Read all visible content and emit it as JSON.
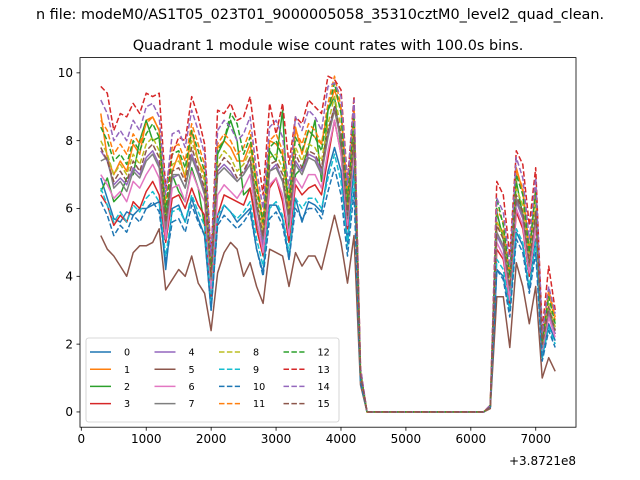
{
  "suptitle": "n file: modeM0/AS1T05_023T01_9000005058_35310cztM0_level2_quad_clean.",
  "chart_data": {
    "type": "line",
    "title": "Quadrant 1 module wise count rates with 100.0s bins.",
    "xlabel": "",
    "ylabel": "",
    "x_offset_label": "+3.8721e8",
    "xlim": [
      -20,
      7620
    ],
    "ylim": [
      -0.45,
      10.45
    ],
    "xticks": [
      0,
      1000,
      2000,
      3000,
      4000,
      5000,
      6000,
      7000
    ],
    "yticks": [
      0,
      2,
      4,
      6,
      8,
      10
    ],
    "grid": false,
    "legend": {
      "placement": "lower-left",
      "columns": 4
    },
    "x": [
      300,
      400,
      500,
      600,
      700,
      800,
      900,
      1000,
      1100,
      1200,
      1300,
      1400,
      1500,
      1600,
      1700,
      1800,
      1900,
      2000,
      2100,
      2200,
      2300,
      2400,
      2500,
      2600,
      2700,
      2800,
      2900,
      3000,
      3100,
      3200,
      3300,
      3400,
      3500,
      3600,
      3700,
      3800,
      3900,
      4000,
      4100,
      4200,
      4300,
      4400,
      4500,
      4600,
      4700,
      4800,
      4900,
      5000,
      5100,
      5200,
      5300,
      5400,
      5500,
      5600,
      5700,
      5800,
      5900,
      6000,
      6100,
      6200,
      6300,
      6400,
      6500,
      6600,
      6700,
      6800,
      6900,
      7000,
      7100,
      7200,
      7300
    ],
    "series": [
      {
        "name": "0",
        "color": "#1f77b4",
        "dash": "solid",
        "values": [
          6.9,
          6.3,
          5.7,
          5.6,
          5.9,
          5.8,
          6.0,
          6.0,
          6.1,
          6.2,
          4.2,
          6.0,
          6.1,
          5.6,
          6.3,
          5.7,
          5.2,
          3.0,
          5.6,
          6.1,
          5.9,
          5.6,
          5.8,
          6.0,
          4.8,
          4.1,
          6.1,
          6.1,
          5.7,
          4.5,
          6.3,
          5.6,
          6.2,
          6.1,
          5.9,
          7.1,
          7.8,
          7.1,
          5.0,
          7.2,
          1.0,
          0.0,
          0,
          0,
          0,
          0,
          0,
          0,
          0,
          0,
          0,
          0,
          0,
          0,
          0,
          0,
          0,
          0,
          0,
          0,
          0.15,
          4.2,
          4.0,
          3.0,
          5.3,
          4.9,
          3.6,
          5.1,
          1.6,
          2.6,
          2.1
        ]
      },
      {
        "name": "1",
        "color": "#ff7f0e",
        "dash": "solid",
        "values": [
          8.8,
          7.5,
          7.0,
          7.4,
          7.1,
          7.9,
          7.6,
          8.6,
          8.7,
          8.3,
          5.5,
          7.1,
          7.6,
          6.9,
          8.3,
          7.4,
          7.0,
          4.4,
          7.8,
          8.0,
          7.8,
          7.4,
          7.4,
          7.9,
          6.8,
          5.5,
          8.0,
          7.9,
          7.6,
          6.1,
          8.4,
          7.6,
          8.3,
          8.1,
          7.9,
          8.9,
          9.5,
          8.9,
          6.1,
          8.9,
          1.1,
          0.0,
          0,
          0,
          0,
          0,
          0,
          0,
          0,
          0,
          0,
          0,
          0,
          0,
          0,
          0,
          0,
          0,
          0,
          0,
          0.2,
          5.6,
          5.3,
          4.0,
          7.2,
          6.5,
          4.7,
          6.6,
          2.1,
          3.6,
          2.8
        ]
      },
      {
        "name": "2",
        "color": "#2ca02c",
        "dash": "solid",
        "values": [
          6.5,
          6.9,
          6.2,
          6.4,
          6.9,
          7.0,
          8.0,
          8.6,
          8.0,
          8.1,
          5.8,
          7.0,
          6.5,
          6.2,
          7.2,
          6.6,
          5.5,
          3.3,
          7.6,
          8.0,
          8.6,
          8.0,
          6.4,
          6.6,
          5.6,
          4.8,
          7.7,
          7.4,
          8.9,
          5.4,
          7.0,
          7.2,
          7.8,
          8.6,
          6.8,
          8.9,
          9.3,
          7.8,
          5.8,
          8.3,
          1.0,
          0.0,
          0,
          0,
          0,
          0,
          0,
          0,
          0,
          0,
          0,
          0,
          0,
          0,
          0,
          0,
          0,
          0,
          0,
          0,
          0.15,
          5.9,
          5.1,
          3.4,
          6.8,
          5.8,
          4.2,
          5.8,
          1.9,
          3.0,
          2.4
        ]
      },
      {
        "name": "3",
        "color": "#d62728",
        "dash": "solid",
        "values": [
          6.4,
          6.1,
          5.5,
          5.8,
          5.6,
          6.2,
          6.0,
          6.5,
          6.8,
          6.4,
          5.0,
          6.3,
          6.4,
          6.0,
          6.6,
          6.1,
          5.8,
          3.3,
          5.8,
          6.4,
          6.3,
          6.2,
          6.1,
          6.6,
          5.4,
          4.6,
          6.6,
          6.9,
          6.2,
          5.0,
          6.7,
          6.4,
          6.6,
          6.7,
          6.4,
          7.5,
          8.6,
          7.6,
          5.4,
          7.9,
          1.0,
          0.0,
          0,
          0,
          0,
          0,
          0,
          0,
          0,
          0,
          0,
          0,
          0,
          0,
          0,
          0,
          0,
          0,
          0,
          0,
          0.15,
          4.8,
          4.5,
          3.2,
          5.9,
          5.4,
          4.0,
          5.5,
          1.8,
          2.8,
          2.3
        ]
      },
      {
        "name": "4",
        "color": "#9467bd",
        "dash": "solid",
        "values": [
          7.7,
          7.4,
          6.7,
          6.9,
          6.7,
          7.2,
          7.0,
          7.5,
          7.7,
          7.3,
          5.3,
          6.9,
          7.0,
          6.6,
          7.6,
          7.1,
          6.5,
          4.0,
          7.1,
          7.3,
          7.1,
          6.8,
          7.0,
          7.5,
          6.1,
          4.9,
          7.1,
          7.3,
          6.8,
          5.7,
          7.4,
          7.1,
          7.6,
          7.5,
          7.1,
          8.2,
          9.0,
          8.1,
          5.7,
          8.1,
          1.0,
          0.0,
          0,
          0,
          0,
          0,
          0,
          0,
          0,
          0,
          0,
          0,
          0,
          0,
          0,
          0,
          0,
          0,
          0,
          0,
          0.15,
          5.2,
          4.8,
          3.5,
          6.2,
          5.7,
          4.2,
          5.7,
          1.9,
          2.9,
          2.3
        ]
      },
      {
        "name": "5",
        "color": "#8c564b",
        "dash": "solid",
        "values": [
          5.2,
          4.8,
          4.6,
          4.3,
          4.0,
          4.7,
          4.9,
          4.9,
          5.0,
          5.4,
          3.6,
          3.9,
          4.2,
          4.0,
          4.6,
          3.8,
          3.5,
          2.4,
          4.1,
          4.7,
          5.0,
          4.8,
          4.0,
          4.4,
          3.7,
          3.2,
          4.8,
          4.7,
          4.6,
          3.7,
          4.7,
          4.3,
          4.6,
          4.6,
          4.2,
          5.0,
          5.8,
          5.0,
          3.8,
          5.2,
          0.8,
          0.0,
          0,
          0,
          0,
          0,
          0,
          0,
          0,
          0,
          0,
          0,
          0,
          0,
          0,
          0,
          0,
          0,
          0,
          0,
          0.1,
          3.4,
          3.4,
          1.9,
          4.4,
          3.7,
          2.6,
          3.7,
          1.0,
          1.6,
          1.2
        ]
      },
      {
        "name": "6",
        "color": "#e377c2",
        "dash": "solid",
        "values": [
          7.0,
          6.7,
          6.3,
          6.5,
          6.2,
          6.8,
          6.6,
          7.0,
          7.3,
          6.9,
          5.1,
          6.6,
          6.7,
          6.2,
          7.1,
          6.6,
          6.2,
          3.6,
          6.4,
          6.7,
          6.5,
          6.3,
          6.6,
          7.0,
          5.7,
          4.7,
          6.7,
          6.9,
          6.4,
          5.2,
          6.9,
          6.6,
          7.0,
          7.0,
          6.6,
          7.7,
          8.6,
          7.6,
          5.5,
          7.7,
          1.0,
          0.0,
          0,
          0,
          0,
          0,
          0,
          0,
          0,
          0,
          0,
          0,
          0,
          0,
          0,
          0,
          0,
          0,
          0,
          0,
          0.15,
          5.0,
          4.6,
          3.3,
          6.0,
          5.5,
          4.1,
          5.5,
          1.8,
          2.8,
          2.2
        ]
      },
      {
        "name": "7",
        "color": "#7f7f7f",
        "dash": "solid",
        "values": [
          7.4,
          7.5,
          6.6,
          6.8,
          6.5,
          7.1,
          6.9,
          7.4,
          7.6,
          7.2,
          5.4,
          7.0,
          7.0,
          6.6,
          7.5,
          7.0,
          6.4,
          3.9,
          7.0,
          7.2,
          7.0,
          6.8,
          7.0,
          7.3,
          6.0,
          5.1,
          7.1,
          7.2,
          6.8,
          5.6,
          7.3,
          7.0,
          7.5,
          7.4,
          7.0,
          8.1,
          8.9,
          8.0,
          5.7,
          8.0,
          1.0,
          0.0,
          0,
          0,
          0,
          0,
          0,
          0,
          0,
          0,
          0,
          0,
          0,
          0,
          0,
          0,
          0,
          0,
          0,
          0,
          0.15,
          5.3,
          4.9,
          3.6,
          6.3,
          5.8,
          4.3,
          5.8,
          1.9,
          3.0,
          2.4
        ]
      },
      {
        "name": "8",
        "color": "#bcbd22",
        "dash": "dashed",
        "values": [
          8.0,
          7.6,
          7.0,
          7.3,
          7.0,
          7.6,
          7.3,
          7.9,
          8.1,
          7.7,
          5.7,
          7.3,
          7.4,
          7.0,
          8.0,
          7.4,
          6.8,
          4.1,
          7.4,
          7.7,
          7.5,
          7.1,
          7.3,
          7.7,
          6.4,
          5.3,
          7.5,
          7.6,
          7.2,
          5.9,
          7.8,
          7.4,
          7.9,
          7.8,
          7.4,
          8.5,
          9.3,
          8.4,
          6.0,
          8.4,
          1.1,
          0.0,
          0,
          0,
          0,
          0,
          0,
          0,
          0,
          0,
          0,
          0,
          0,
          0,
          0,
          0,
          0,
          0,
          0,
          0,
          0.15,
          5.6,
          5.2,
          3.8,
          6.6,
          6.1,
          4.5,
          6.1,
          2.0,
          3.2,
          2.5
        ]
      },
      {
        "name": "9",
        "color": "#17becf",
        "dash": "dashed",
        "values": [
          6.6,
          6.1,
          5.6,
          5.9,
          5.6,
          6.1,
          5.9,
          6.3,
          6.5,
          6.2,
          4.6,
          5.9,
          6.0,
          5.6,
          6.4,
          5.9,
          5.5,
          3.2,
          5.8,
          6.1,
          5.9,
          5.7,
          5.9,
          6.2,
          5.1,
          4.3,
          6.0,
          6.2,
          5.8,
          4.7,
          6.3,
          6.0,
          6.3,
          6.3,
          6.0,
          6.9,
          7.6,
          6.8,
          4.9,
          6.9,
          0.9,
          0.0,
          0,
          0,
          0,
          0,
          0,
          0,
          0,
          0,
          0,
          0,
          0,
          0,
          0,
          0,
          0,
          0,
          0,
          0,
          0.15,
          4.5,
          4.2,
          3.0,
          5.4,
          5.0,
          3.7,
          5.0,
          1.6,
          2.5,
          2.0
        ]
      },
      {
        "name": "10",
        "color": "#1f77b4",
        "dash": "dashed",
        "values": [
          6.2,
          5.8,
          5.2,
          5.5,
          5.3,
          5.8,
          5.6,
          6.0,
          6.2,
          5.9,
          4.4,
          5.6,
          5.7,
          5.3,
          6.1,
          5.6,
          5.2,
          3.0,
          5.5,
          5.8,
          5.6,
          5.4,
          5.6,
          5.9,
          4.8,
          4.0,
          5.7,
          5.9,
          5.5,
          4.5,
          6.0,
          5.7,
          6.0,
          6.0,
          5.7,
          6.5,
          7.2,
          6.4,
          4.6,
          6.5,
          0.9,
          0.0,
          0,
          0,
          0,
          0,
          0,
          0,
          0,
          0,
          0,
          0,
          0,
          0,
          0,
          0,
          0,
          0,
          0,
          0,
          0.15,
          4.2,
          3.9,
          2.8,
          5.1,
          4.7,
          3.5,
          4.7,
          1.5,
          2.4,
          1.9
        ]
      },
      {
        "name": "11",
        "color": "#ff7f0e",
        "dash": "dashed",
        "values": [
          8.6,
          8.3,
          7.6,
          7.9,
          7.6,
          8.2,
          7.9,
          8.5,
          8.7,
          8.3,
          6.1,
          7.8,
          7.9,
          7.4,
          8.5,
          7.9,
          7.3,
          4.4,
          7.9,
          8.2,
          8.0,
          7.6,
          7.8,
          8.3,
          6.8,
          5.7,
          8.0,
          8.2,
          7.7,
          6.3,
          8.3,
          7.9,
          8.5,
          8.3,
          7.9,
          9.1,
          9.9,
          9.0,
          6.4,
          9.0,
          1.2,
          0.0,
          0,
          0,
          0,
          0,
          0,
          0,
          0,
          0,
          0,
          0,
          0,
          0,
          0,
          0,
          0,
          0,
          0,
          0,
          0.2,
          6.0,
          5.6,
          4.1,
          7.1,
          6.6,
          4.8,
          6.6,
          2.2,
          3.5,
          2.7
        ]
      },
      {
        "name": "12",
        "color": "#2ca02c",
        "dash": "dashed",
        "values": [
          8.4,
          8.0,
          7.4,
          7.6,
          7.3,
          8.0,
          7.7,
          8.2,
          8.5,
          8.1,
          5.9,
          7.6,
          7.7,
          7.2,
          8.3,
          7.7,
          7.1,
          4.3,
          7.7,
          8.0,
          8.8,
          8.5,
          7.6,
          8.1,
          6.6,
          5.6,
          7.8,
          8.0,
          7.5,
          6.2,
          8.1,
          7.7,
          8.3,
          8.1,
          7.7,
          8.9,
          9.7,
          8.8,
          6.2,
          8.8,
          1.2,
          0.0,
          0,
          0,
          0,
          0,
          0,
          0,
          0,
          0,
          0,
          0,
          0,
          0,
          0,
          0,
          0,
          0,
          0,
          0,
          0.2,
          6.3,
          5.5,
          4.0,
          7.0,
          6.4,
          4.7,
          6.5,
          2.1,
          3.4,
          2.6
        ]
      },
      {
        "name": "13",
        "color": "#d62728",
        "dash": "dashed",
        "values": [
          9.6,
          9.4,
          8.3,
          8.8,
          8.7,
          9.1,
          8.8,
          9.4,
          9.3,
          9.4,
          6.6,
          7.6,
          8.1,
          8.0,
          9.3,
          8.7,
          7.9,
          4.6,
          8.9,
          8.8,
          9.1,
          8.6,
          8.7,
          9.3,
          7.8,
          6.4,
          9.1,
          8.2,
          9.1,
          7.3,
          8.7,
          8.5,
          9.2,
          9.0,
          8.8,
          9.9,
          9.8,
          9.5,
          6.8,
          9.3,
          1.3,
          0.0,
          0,
          0,
          0,
          0,
          0,
          0,
          0,
          0,
          0,
          0,
          0,
          0,
          0,
          0,
          0,
          0,
          0,
          0,
          0.2,
          6.8,
          6.4,
          4.6,
          7.7,
          7.3,
          5.5,
          7.2,
          2.4,
          4.3,
          3.0
        ]
      },
      {
        "name": "14",
        "color": "#9467bd",
        "dash": "dashed",
        "values": [
          9.2,
          8.8,
          8.0,
          8.3,
          8.0,
          8.6,
          8.3,
          9.0,
          9.1,
          8.7,
          6.4,
          8.2,
          8.3,
          7.8,
          8.9,
          8.3,
          7.6,
          4.6,
          8.3,
          8.6,
          8.4,
          8.0,
          8.2,
          8.7,
          7.1,
          6.0,
          8.4,
          8.6,
          8.1,
          6.6,
          8.7,
          8.3,
          8.9,
          8.7,
          8.3,
          9.6,
          9.7,
          9.3,
          6.7,
          9.2,
          1.3,
          0.0,
          0,
          0,
          0,
          0,
          0,
          0,
          0,
          0,
          0,
          0,
          0,
          0,
          0,
          0,
          0,
          0,
          0,
          0,
          0.2,
          6.3,
          5.9,
          4.3,
          7.5,
          6.9,
          5.1,
          6.9,
          2.3,
          3.7,
          2.9
        ]
      },
      {
        "name": "15",
        "color": "#8c564b",
        "dash": "dashed",
        "values": [
          7.8,
          7.4,
          6.8,
          7.1,
          6.8,
          7.4,
          7.1,
          7.7,
          7.9,
          7.5,
          5.6,
          7.1,
          7.2,
          6.8,
          7.8,
          7.2,
          6.6,
          4.0,
          7.2,
          7.5,
          7.3,
          6.9,
          7.1,
          7.5,
          6.2,
          5.2,
          7.3,
          7.4,
          7.0,
          5.8,
          7.6,
          7.2,
          7.7,
          7.6,
          7.2,
          8.3,
          9.0,
          8.2,
          5.8,
          8.2,
          1.1,
          0.0,
          0,
          0,
          0,
          0,
          0,
          0,
          0,
          0,
          0,
          0,
          0,
          0,
          0,
          0,
          0,
          0,
          0,
          0,
          0.15,
          5.5,
          5.1,
          3.7,
          6.4,
          5.9,
          4.4,
          5.9,
          2.0,
          3.1,
          2.4
        ]
      }
    ]
  }
}
